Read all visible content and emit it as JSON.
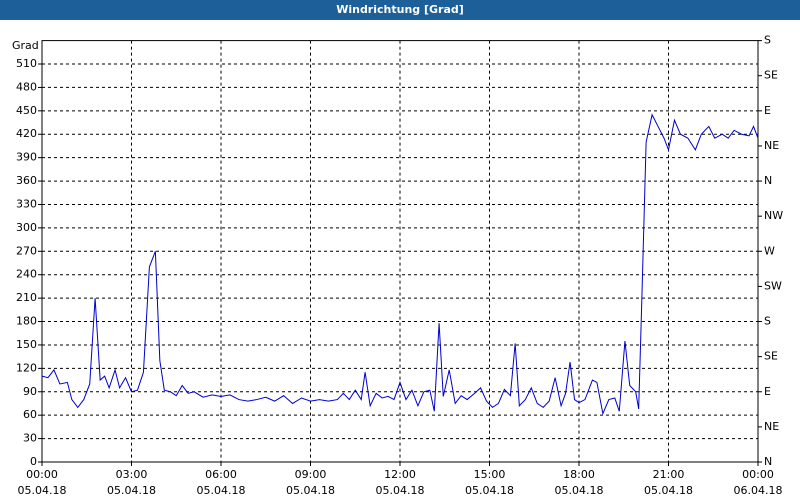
{
  "chart_data": {
    "type": "line",
    "title": "Windrichtung [Grad]",
    "y_label": "Grad",
    "x": [
      0,
      0.2,
      0.4,
      0.6,
      0.85,
      1.0,
      1.2,
      1.4,
      1.6,
      1.78,
      1.95,
      2.1,
      2.25,
      2.45,
      2.6,
      2.8,
      3.0,
      3.2,
      3.4,
      3.6,
      3.8,
      3.95,
      4.1,
      4.3,
      4.5,
      4.7,
      4.9,
      5.1,
      5.4,
      5.7,
      6.0,
      6.3,
      6.6,
      6.9,
      7.2,
      7.5,
      7.8,
      8.1,
      8.4,
      8.7,
      9.0,
      9.3,
      9.6,
      9.9,
      10.1,
      10.3,
      10.5,
      10.7,
      10.83,
      11.0,
      11.2,
      11.4,
      11.6,
      11.8,
      12.0,
      12.2,
      12.4,
      12.6,
      12.8,
      13.0,
      13.15,
      13.31,
      13.45,
      13.65,
      13.85,
      14.05,
      14.25,
      14.5,
      14.7,
      14.9,
      15.1,
      15.3,
      15.5,
      15.7,
      15.86,
      16.0,
      16.2,
      16.4,
      16.6,
      16.8,
      17.0,
      17.2,
      17.4,
      17.55,
      17.7,
      17.85,
      18.0,
      18.2,
      18.45,
      18.6,
      18.8,
      19.0,
      19.2,
      19.35,
      19.54,
      19.7,
      19.9,
      20.0,
      20.1,
      20.25,
      20.45,
      20.65,
      20.85,
      21.0,
      21.2,
      21.4,
      21.65,
      21.9,
      22.1,
      22.35,
      22.55,
      22.8,
      23.0,
      23.2,
      23.45,
      23.7,
      23.85,
      24.0
    ],
    "series": [
      {
        "name": "Windrichtung",
        "color": "#0000cc",
        "values": [
          110,
          108,
          118,
          100,
          102,
          80,
          70,
          80,
          100,
          210,
          105,
          110,
          95,
          118,
          95,
          108,
          90,
          92,
          115,
          250,
          270,
          130,
          92,
          90,
          85,
          98,
          88,
          90,
          83,
          86,
          84,
          86,
          80,
          78,
          80,
          83,
          78,
          85,
          75,
          82,
          78,
          80,
          78,
          80,
          88,
          80,
          92,
          80,
          115,
          72,
          88,
          82,
          84,
          80,
          102,
          80,
          92,
          72,
          90,
          92,
          65,
          178,
          84,
          118,
          75,
          85,
          80,
          88,
          95,
          78,
          70,
          75,
          93,
          85,
          152,
          72,
          80,
          95,
          75,
          70,
          78,
          108,
          72,
          88,
          128,
          80,
          76,
          80,
          105,
          102,
          62,
          80,
          82,
          65,
          155,
          98,
          90,
          68,
          200,
          410,
          445,
          430,
          415,
          400,
          438,
          420,
          415,
          400,
          420,
          430,
          415,
          420,
          415,
          425,
          420,
          418,
          430,
          415
        ]
      }
    ],
    "xlim": [
      0,
      24
    ],
    "xticks": [
      {
        "value": 0,
        "label": "00:00"
      },
      {
        "value": 3,
        "label": "03:00"
      },
      {
        "value": 6,
        "label": "06:00"
      },
      {
        "value": 9,
        "label": "09:00"
      },
      {
        "value": 12,
        "label": "12:00"
      },
      {
        "value": 15,
        "label": "15:00"
      },
      {
        "value": 18,
        "label": "18:00"
      },
      {
        "value": 21,
        "label": "21:00"
      },
      {
        "value": 24,
        "label": "00:00"
      }
    ],
    "xtick_dates": [
      "05.04.18",
      "05.04.18",
      "05.04.18",
      "05.04.18",
      "05.04.18",
      "05.04.18",
      "05.04.18",
      "05.04.18",
      "06.04.18"
    ],
    "ylim": [
      0,
      540
    ],
    "yticks": [
      0,
      30,
      60,
      90,
      120,
      150,
      180,
      210,
      240,
      270,
      300,
      330,
      360,
      390,
      420,
      450,
      480,
      510
    ],
    "y2lim": [
      0,
      540
    ],
    "y2ticks": [
      {
        "value": 0,
        "label": "N"
      },
      {
        "value": 45,
        "label": "NE"
      },
      {
        "value": 90,
        "label": "E"
      },
      {
        "value": 135,
        "label": "SE"
      },
      {
        "value": 180,
        "label": "S"
      },
      {
        "value": 225,
        "label": "SW"
      },
      {
        "value": 270,
        "label": "W"
      },
      {
        "value": 315,
        "label": "NW"
      },
      {
        "value": 360,
        "label": "N"
      },
      {
        "value": 405,
        "label": "NE"
      },
      {
        "value": 450,
        "label": "E"
      },
      {
        "value": 495,
        "label": "SE"
      },
      {
        "value": 540,
        "label": "S"
      }
    ],
    "grid": true
  }
}
